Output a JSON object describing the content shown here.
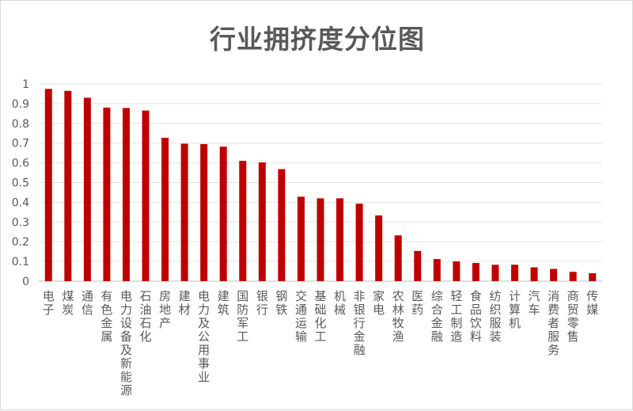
{
  "chart_data": {
    "type": "bar",
    "title": "行业拥挤度分位图",
    "xlabel": "",
    "ylabel": "",
    "ylim": [
      0,
      1
    ],
    "yticks": [
      "0",
      "0.1",
      "0.2",
      "0.3",
      "0.4",
      "0.5",
      "0.6",
      "0.7",
      "0.8",
      "0.9",
      "1"
    ],
    "grid": true,
    "legend": "none",
    "bar_color": "#c00000",
    "categories": [
      "电子",
      "煤炭",
      "通信",
      "有色金属",
      "电力设备及新能源",
      "石油石化",
      "房地产",
      "建材",
      "电力及公用事业",
      "建筑",
      "国防军工",
      "银行",
      "钢铁",
      "交通运输",
      "基础化工",
      "机械",
      "非银行金融",
      "家电",
      "农林牧渔",
      "医药",
      "综合金融",
      "轻工制造",
      "食品饮料",
      "纺织服装",
      "计算机",
      "汽车",
      "消费者服务",
      "商贸零售",
      "传媒"
    ],
    "values": [
      0.975,
      0.965,
      0.93,
      0.88,
      0.878,
      0.865,
      0.727,
      0.697,
      0.695,
      0.682,
      0.61,
      0.602,
      0.568,
      0.428,
      0.42,
      0.42,
      0.393,
      0.333,
      0.232,
      0.153,
      0.112,
      0.1,
      0.092,
      0.083,
      0.083,
      0.07,
      0.062,
      0.047,
      0.04
    ]
  }
}
